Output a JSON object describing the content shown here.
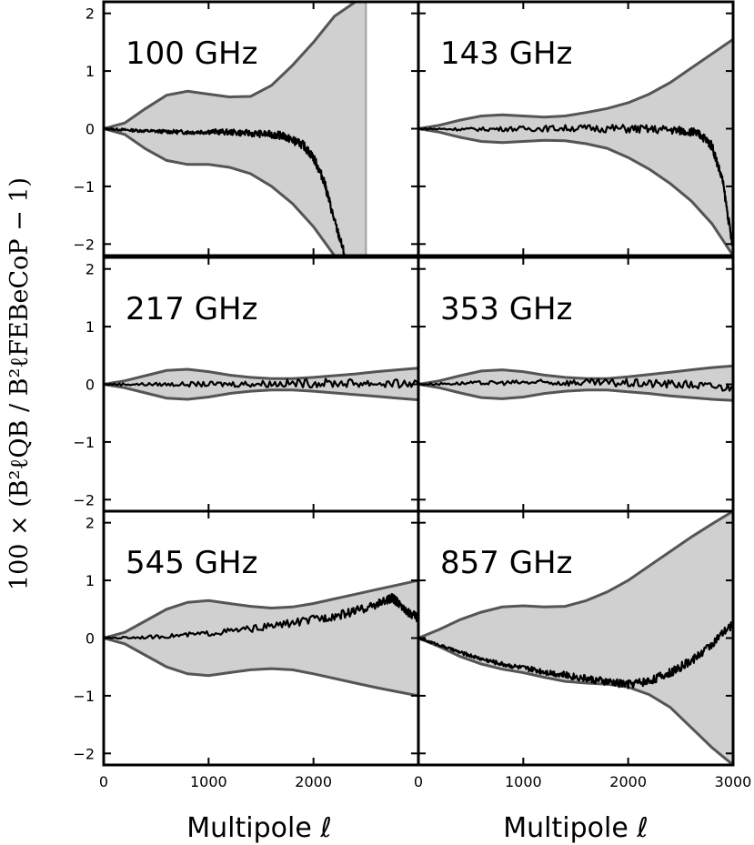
{
  "chart_data": {
    "type": "line",
    "xlabel": "Multipole ℓ",
    "ylabel": "100 × (B²ℓQB / B²ℓFEBeCoP − 1)",
    "xlim": [
      0,
      3000
    ],
    "ylim": [
      -2.2,
      2.2
    ],
    "xticks": [
      0,
      1000,
      2000,
      3000
    ],
    "xtick_labels": [
      "0",
      "1000",
      "2000",
      "3000"
    ],
    "yticks": [
      -2,
      -1,
      0,
      1,
      2
    ],
    "ytick_labels": [
      "−2",
      "−1",
      "0",
      "1",
      "2"
    ],
    "panels": [
      {
        "label": "100 GHz",
        "cutoff": 2500,
        "envelope_x": [
          0,
          200,
          400,
          600,
          800,
          1000,
          1200,
          1400,
          1600,
          1800,
          2000,
          2200,
          2400,
          2500
        ],
        "envelope_upper": [
          0,
          0.1,
          0.35,
          0.58,
          0.65,
          0.6,
          0.55,
          0.56,
          0.75,
          1.1,
          1.5,
          1.95,
          2.2,
          2.2
        ],
        "envelope_lower": [
          0,
          -0.1,
          -0.35,
          -0.55,
          -0.62,
          -0.62,
          -0.67,
          -0.78,
          -1.0,
          -1.3,
          -1.7,
          -2.2,
          -2.2,
          -2.2
        ],
        "ratio_x": [
          0,
          200,
          400,
          600,
          800,
          1000,
          1200,
          1400,
          1600,
          1700,
          1800,
          1900,
          2000,
          2100,
          2200,
          2300
        ],
        "ratio_y": [
          0,
          -0.02,
          -0.04,
          -0.05,
          -0.06,
          -0.05,
          -0.06,
          -0.08,
          -0.1,
          -0.12,
          -0.2,
          -0.28,
          -0.5,
          -0.9,
          -1.6,
          -2.2
        ]
      },
      {
        "label": "143 GHz",
        "envelope_x": [
          0,
          200,
          400,
          600,
          800,
          1000,
          1200,
          1400,
          1600,
          1800,
          2000,
          2200,
          2400,
          2600,
          2800,
          3000
        ],
        "envelope_upper": [
          0,
          0.06,
          0.15,
          0.22,
          0.24,
          0.22,
          0.2,
          0.22,
          0.28,
          0.35,
          0.45,
          0.6,
          0.8,
          1.05,
          1.3,
          1.55
        ],
        "envelope_lower": [
          0,
          -0.06,
          -0.15,
          -0.22,
          -0.24,
          -0.22,
          -0.2,
          -0.21,
          -0.26,
          -0.34,
          -0.5,
          -0.7,
          -0.95,
          -1.25,
          -1.65,
          -2.2
        ],
        "ratio_x": [
          0,
          500,
          1000,
          1500,
          2000,
          2400,
          2600,
          2700,
          2800,
          2900,
          3000
        ],
        "ratio_y": [
          0,
          -0.01,
          0.0,
          0.01,
          0.0,
          -0.02,
          -0.05,
          -0.12,
          -0.3,
          -0.9,
          -2.1
        ]
      },
      {
        "label": "217 GHz",
        "envelope_x": [
          0,
          200,
          400,
          600,
          800,
          1000,
          1200,
          1400,
          1600,
          1800,
          2000,
          2200,
          2400,
          2600,
          2800,
          3000
        ],
        "envelope_upper": [
          0,
          0.06,
          0.15,
          0.24,
          0.26,
          0.22,
          0.16,
          0.12,
          0.1,
          0.1,
          0.12,
          0.15,
          0.18,
          0.22,
          0.25,
          0.28
        ],
        "envelope_lower": [
          0,
          -0.06,
          -0.15,
          -0.24,
          -0.26,
          -0.22,
          -0.16,
          -0.12,
          -0.1,
          -0.1,
          -0.12,
          -0.15,
          -0.18,
          -0.21,
          -0.24,
          -0.27
        ],
        "ratio_x": [
          0,
          500,
          1000,
          1500,
          2000,
          2500,
          3000
        ],
        "ratio_y": [
          0,
          0.0,
          0.0,
          0.01,
          0.02,
          0.02,
          0.0
        ]
      },
      {
        "label": "353 GHz",
        "envelope_x": [
          0,
          200,
          400,
          600,
          800,
          1000,
          1200,
          1400,
          1600,
          1800,
          2000,
          2200,
          2400,
          2600,
          2800,
          3000
        ],
        "envelope_upper": [
          0,
          0.06,
          0.15,
          0.23,
          0.25,
          0.22,
          0.16,
          0.12,
          0.1,
          0.1,
          0.13,
          0.17,
          0.21,
          0.25,
          0.29,
          0.32
        ],
        "envelope_lower": [
          0,
          -0.06,
          -0.15,
          -0.23,
          -0.25,
          -0.22,
          -0.16,
          -0.12,
          -0.1,
          -0.1,
          -0.13,
          -0.16,
          -0.2,
          -0.23,
          -0.26,
          -0.28
        ],
        "ratio_x": [
          0,
          500,
          1000,
          1500,
          2000,
          2500,
          3000
        ],
        "ratio_y": [
          0,
          0.02,
          0.03,
          0.03,
          0.02,
          0.0,
          -0.06
        ]
      },
      {
        "label": "545 GHz",
        "envelope_x": [
          0,
          200,
          400,
          600,
          800,
          1000,
          1200,
          1400,
          1600,
          1800,
          2000,
          2200,
          2400,
          2600,
          2800,
          3000
        ],
        "envelope_upper": [
          0,
          0.1,
          0.3,
          0.5,
          0.62,
          0.65,
          0.6,
          0.55,
          0.52,
          0.54,
          0.6,
          0.68,
          0.76,
          0.84,
          0.92,
          1.0
        ],
        "envelope_lower": [
          0,
          -0.1,
          -0.3,
          -0.5,
          -0.62,
          -0.65,
          -0.6,
          -0.55,
          -0.53,
          -0.55,
          -0.62,
          -0.7,
          -0.78,
          -0.86,
          -0.93,
          -1.0
        ],
        "ratio_x": [
          0,
          500,
          1000,
          1500,
          2000,
          2300,
          2500,
          2700,
          2750,
          2800,
          2900,
          3000
        ],
        "ratio_y": [
          0,
          0.02,
          0.08,
          0.18,
          0.32,
          0.42,
          0.52,
          0.65,
          0.7,
          0.62,
          0.45,
          0.35
        ]
      },
      {
        "label": "857 GHz",
        "envelope_x": [
          0,
          200,
          400,
          600,
          800,
          1000,
          1200,
          1400,
          1600,
          1800,
          2000,
          2200,
          2400,
          2600,
          2800,
          3000
        ],
        "envelope_upper": [
          0,
          0.15,
          0.32,
          0.45,
          0.54,
          0.56,
          0.54,
          0.55,
          0.65,
          0.8,
          1.0,
          1.25,
          1.5,
          1.75,
          1.98,
          2.2
        ],
        "envelope_lower": [
          0,
          -0.15,
          -0.32,
          -0.45,
          -0.54,
          -0.6,
          -0.68,
          -0.75,
          -0.78,
          -0.8,
          -0.85,
          -0.98,
          -1.2,
          -1.55,
          -1.9,
          -2.2
        ],
        "ratio_x": [
          0,
          200,
          400,
          600,
          800,
          1000,
          1200,
          1400,
          1600,
          1800,
          2000,
          2200,
          2400,
          2600,
          2800,
          3000
        ],
        "ratio_y": [
          0,
          -0.12,
          -0.25,
          -0.36,
          -0.45,
          -0.52,
          -0.58,
          -0.64,
          -0.7,
          -0.76,
          -0.8,
          -0.74,
          -0.6,
          -0.4,
          -0.1,
          0.25
        ]
      }
    ]
  }
}
